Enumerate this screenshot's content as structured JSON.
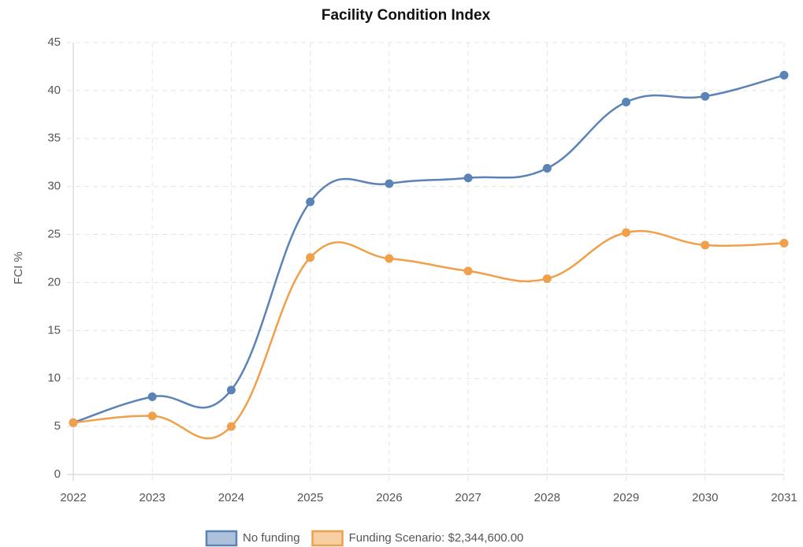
{
  "chart_data": {
    "type": "line",
    "title": "Facility Condition Index",
    "ylabel": "FCI %",
    "categories": [
      "2022",
      "2023",
      "2024",
      "2025",
      "2026",
      "2027",
      "2028",
      "2029",
      "2030",
      "2031"
    ],
    "series": [
      {
        "name": "No funding",
        "color": "#5b83b5",
        "values": [
          5.4,
          8.1,
          8.8,
          28.4,
          30.3,
          30.9,
          31.9,
          38.8,
          39.4,
          41.6
        ]
      },
      {
        "name": "Funding Scenario: $2,344,600.00",
        "color": "#f0a04b",
        "values": [
          5.4,
          6.1,
          5.0,
          22.6,
          22.5,
          21.2,
          20.4,
          25.2,
          23.9,
          24.1
        ]
      }
    ],
    "ylim": [
      0,
      45
    ],
    "yticks": [
      0,
      5,
      10,
      15,
      20,
      25,
      30,
      35,
      40,
      45
    ],
    "grid": true,
    "legend": "bottom"
  }
}
